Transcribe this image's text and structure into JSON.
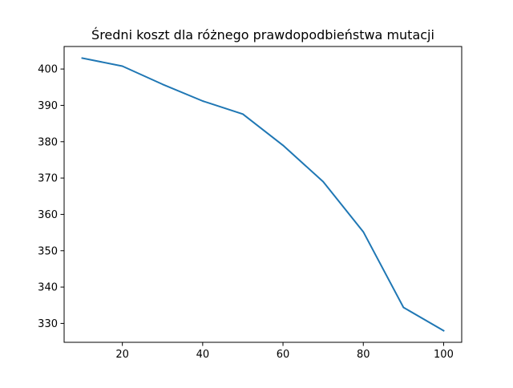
{
  "chart_data": {
    "type": "line",
    "title": "Średni koszt dla różnego prawdopodbieństwa mutacji",
    "xlabel": "",
    "ylabel": "",
    "x": [
      10,
      20,
      30,
      40,
      50,
      60,
      70,
      80,
      90,
      100
    ],
    "series": [
      {
        "values": [
          403.0,
          400.8,
          395.8,
          391.2,
          387.6,
          379.0,
          369.0,
          355.2,
          334.4,
          328.0
        ],
        "color": "#1f77b4"
      }
    ],
    "xlim": [
      5.5,
      104.5
    ],
    "ylim": [
      324.8,
      406.2
    ],
    "xticks": [
      20,
      40,
      60,
      80,
      100
    ],
    "yticks": [
      330,
      340,
      350,
      360,
      370,
      380,
      390,
      400
    ],
    "grid": false,
    "legend": "none"
  }
}
